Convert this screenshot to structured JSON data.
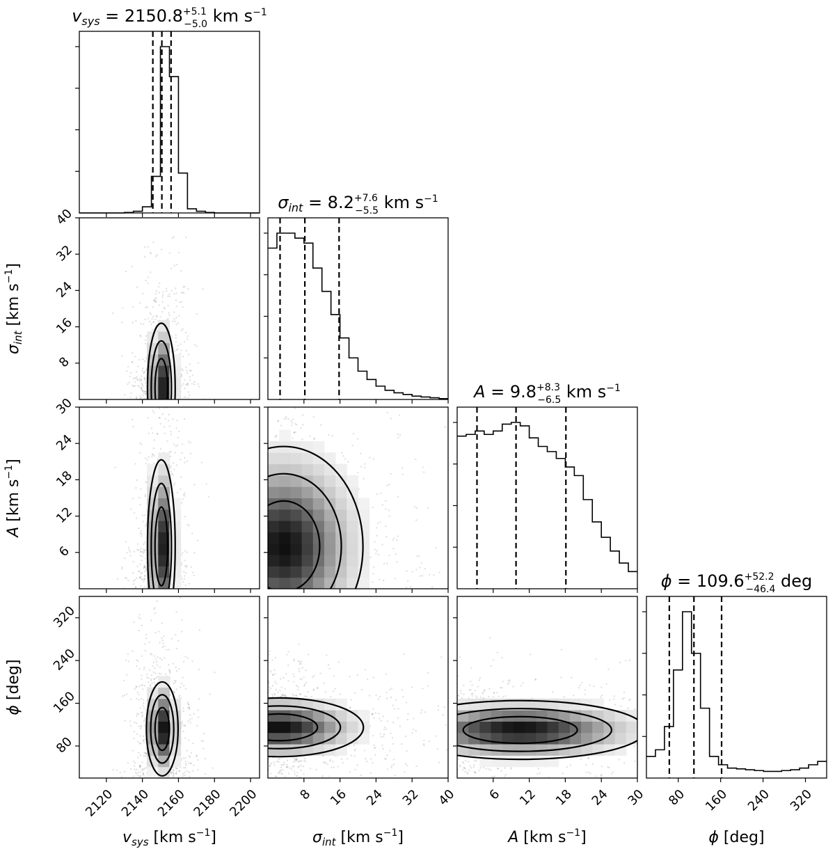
{
  "chart_data": {
    "type": "corner",
    "parameters": [
      {
        "key": "vsys",
        "symbol": "v",
        "subscript": "sys",
        "italic": true,
        "unit_label": " [km s",
        "median": 2150.8,
        "err_plus": 5.1,
        "err_minus": 5.0,
        "median_text": "2150.8",
        "err_plus_text": "+5.1",
        "err_minus_text": "−5.0",
        "unit_title": "km s",
        "unit_title_exp": "−1",
        "range": [
          2105,
          2205
        ],
        "ticks": [
          2120,
          2140,
          2160,
          2180,
          2200
        ],
        "tick_labels": [
          "2120",
          "2140",
          "2160",
          "2180",
          "2200"
        ],
        "quantiles": [
          2145.8,
          2150.8,
          2155.9
        ]
      },
      {
        "key": "sigma",
        "symbol": "σ",
        "subscript": "int",
        "italic": true,
        "unit_label": " [km s",
        "median": 8.2,
        "err_plus": 7.6,
        "err_minus": 5.5,
        "median_text": "8.2",
        "err_plus_text": "+7.6",
        "err_minus_text": "−5.5",
        "unit_title": "km s",
        "unit_title_exp": "−1",
        "range": [
          0,
          40
        ],
        "ticks": [
          8,
          16,
          24,
          32,
          40
        ],
        "tick_labels": [
          "8",
          "16",
          "24",
          "32",
          "40"
        ],
        "quantiles": [
          2.7,
          8.2,
          15.8
        ]
      },
      {
        "key": "A",
        "symbol": "A",
        "subscript": "",
        "italic": true,
        "unit_label": " [km s",
        "median": 9.8,
        "err_plus": 8.3,
        "err_minus": 6.5,
        "median_text": "9.8",
        "err_plus_text": "+8.3",
        "err_minus_text": "−6.5",
        "unit_title": "km s",
        "unit_title_exp": "−1",
        "range": [
          0,
          30
        ],
        "ticks": [
          6,
          12,
          18,
          24,
          30
        ],
        "tick_labels": [
          "6",
          "12",
          "18",
          "24",
          "30"
        ],
        "quantiles": [
          3.3,
          9.8,
          18.1
        ]
      },
      {
        "key": "phi",
        "symbol": "ϕ",
        "subscript": "",
        "italic": true,
        "unit_label": " [deg]",
        "median": 109.6,
        "err_plus": 52.2,
        "err_minus": 46.4,
        "median_text": "109.6",
        "err_plus_text": "+52.2",
        "err_minus_text": "−46.4",
        "unit_title": "deg",
        "unit_title_exp": "",
        "range": [
          20,
          360
        ],
        "ticks": [
          80,
          160,
          240,
          320
        ],
        "tick_labels": [
          "80",
          "160",
          "240",
          "320"
        ],
        "quantiles": [
          63.2,
          109.6,
          161.8
        ]
      }
    ],
    "histograms_1d": {
      "vsys": {
        "bin_edges": [
          2105,
          2110,
          2115,
          2120,
          2125,
          2130,
          2135,
          2140,
          2145,
          2150,
          2155,
          2160,
          2165,
          2170,
          2175,
          2180,
          2185,
          2190,
          2195,
          2200,
          2205
        ],
        "counts": [
          0,
          0,
          0,
          0,
          0,
          0.3,
          1,
          3.7,
          22,
          100,
          82,
          24,
          2.5,
          1,
          0.3,
          0,
          0,
          0,
          0,
          0
        ]
      },
      "sigma": {
        "bin_edges": [
          0,
          2,
          4,
          6,
          8,
          10,
          12,
          14,
          16,
          18,
          20,
          22,
          24,
          26,
          28,
          30,
          32,
          34,
          36,
          38,
          40
        ],
        "counts": [
          91,
          100,
          100,
          97,
          94,
          79,
          65,
          51,
          37,
          25,
          17,
          12,
          8,
          5.5,
          4,
          3,
          2,
          1.5,
          1,
          0.5
        ]
      },
      "A": {
        "bin_edges": [
          0,
          1.5,
          3,
          4.5,
          6,
          7.5,
          9,
          10.5,
          12,
          13.5,
          15,
          16.5,
          18,
          19.5,
          21,
          22.5,
          24,
          25.5,
          27,
          28.5,
          30
        ],
        "counts": [
          89,
          90,
          92,
          90,
          92,
          96,
          97,
          95,
          88,
          83,
          80,
          76,
          71,
          66,
          52,
          39,
          30,
          22,
          15,
          10
        ]
      },
      "phi": {
        "bin_edges": [
          20,
          37,
          54,
          71,
          88,
          105,
          122,
          139,
          156,
          173,
          190,
          207,
          224,
          241,
          258,
          275,
          292,
          309,
          326,
          343,
          360
        ],
        "counts": [
          13,
          17,
          31,
          65,
          100,
          75,
          42,
          13,
          8,
          6,
          5.5,
          5,
          4.5,
          4,
          4,
          4.5,
          5,
          6,
          8,
          10
        ]
      }
    },
    "density_2d": [
      {
        "x": "vsys",
        "y": "sigma",
        "cx": 2150.5,
        "cy": 2.5,
        "sx": 3.5,
        "sy": 6.5
      },
      {
        "x": "vsys",
        "y": "A",
        "cx": 2150.5,
        "cy": 7.0,
        "sx": 3.5,
        "sy": 6.5
      },
      {
        "x": "sigma",
        "y": "A",
        "cx": 3.5,
        "cy": 7.0,
        "sx": 8.0,
        "sy": 7.5
      },
      {
        "x": "vsys",
        "y": "phi",
        "cx": 2151.0,
        "cy": 112,
        "sx": 4.0,
        "sy": 40
      },
      {
        "x": "sigma",
        "y": "phi",
        "cx": 2.5,
        "cy": 115,
        "sx": 8.5,
        "sy": 25
      },
      {
        "x": "A",
        "y": "phi",
        "cx": 10.5,
        "cy": 110,
        "sx": 9.5,
        "sy": 25
      }
    ],
    "xlabel": "",
    "ylabel": "",
    "grid": false,
    "contour_levels": 3
  }
}
